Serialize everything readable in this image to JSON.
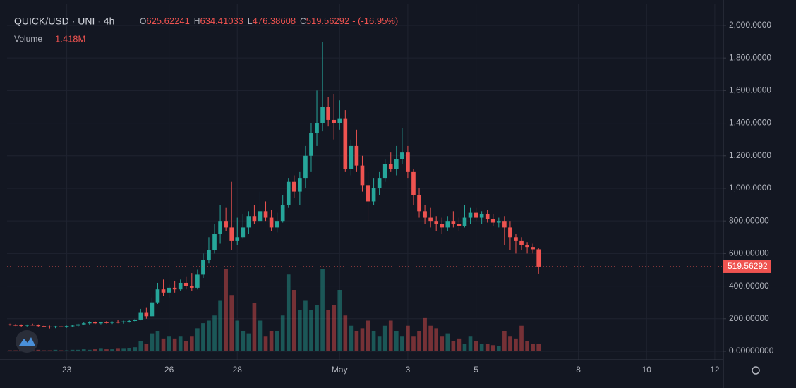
{
  "chart_data": {
    "type": "candlestick",
    "title": "QUICK/USD · UNI · 4h",
    "ohlc_labels": [
      "O",
      "H",
      "L",
      "C"
    ],
    "change_label": "- (-16.95%)",
    "volume_title": "Volume",
    "volume_label": "1.418M",
    "up_color": "#26a69a",
    "down_color": "#ef5350",
    "grid": true,
    "ylim": [
      -52,
      2134
    ],
    "yticks": [
      {
        "value": 0,
        "label": "0.00000000"
      },
      {
        "value": 200,
        "label": "200.00000"
      },
      {
        "value": 400,
        "label": "400.00000"
      },
      {
        "value": 600,
        "label": "600.00000"
      },
      {
        "value": 800,
        "label": "800.00000"
      },
      {
        "value": 1000,
        "label": "1,000.0000"
      },
      {
        "value": 1200,
        "label": "1,200.0000"
      },
      {
        "value": 1400,
        "label": "1,400.0000"
      },
      {
        "value": 1600,
        "label": "1,600.0000"
      },
      {
        "value": 1800,
        "label": "1,800.0000"
      },
      {
        "value": 2000,
        "label": "2,000.0000"
      }
    ],
    "xlim": [
      -10.5,
      115.5
    ],
    "xticks": [
      {
        "value": 0,
        "label": "23"
      },
      {
        "value": 18,
        "label": "26"
      },
      {
        "value": 30,
        "label": "28"
      },
      {
        "value": 48,
        "label": "May"
      },
      {
        "value": 60,
        "label": "3"
      },
      {
        "value": 72,
        "label": "5"
      },
      {
        "value": 90,
        "label": "8"
      },
      {
        "value": 102,
        "label": "10"
      },
      {
        "value": 114,
        "label": "12"
      }
    ],
    "volume_lim": [
      0,
      68000000
    ],
    "x": [
      -10,
      -9,
      -8,
      -7,
      -6,
      -5,
      -4,
      -3,
      -2,
      -1,
      0,
      1,
      2,
      3,
      4,
      5,
      6,
      7,
      8,
      9,
      10,
      11,
      12,
      13,
      14,
      15,
      16,
      17,
      18,
      19,
      20,
      21,
      22,
      23,
      24,
      25,
      26,
      27,
      28,
      29,
      30,
      31,
      32,
      33,
      34,
      35,
      36,
      37,
      38,
      39,
      40,
      41,
      42,
      43,
      44,
      45,
      46,
      47,
      48,
      49,
      50,
      51,
      52,
      53,
      54,
      55,
      56,
      57,
      58,
      59,
      60,
      61,
      62,
      63,
      64,
      65,
      66,
      67,
      68,
      69,
      70,
      71,
      72,
      73,
      74,
      75,
      76,
      77,
      78,
      79,
      80,
      81,
      82,
      83
    ],
    "ohlc": [
      [
        165,
        170,
        158,
        162
      ],
      [
        162,
        168,
        155,
        160
      ],
      [
        160,
        166,
        150,
        158
      ],
      [
        158,
        165,
        152,
        163
      ],
      [
        163,
        170,
        158,
        160
      ],
      [
        160,
        166,
        152,
        155
      ],
      [
        155,
        162,
        148,
        152
      ],
      [
        152,
        158,
        140,
        148
      ],
      [
        148,
        156,
        142,
        153
      ],
      [
        153,
        160,
        146,
        150
      ],
      [
        150,
        158,
        144,
        155
      ],
      [
        155,
        162,
        150,
        158
      ],
      [
        158,
        170,
        152,
        166
      ],
      [
        166,
        178,
        160,
        172
      ],
      [
        172,
        185,
        165,
        178
      ],
      [
        178,
        184,
        168,
        172
      ],
      [
        172,
        182,
        166,
        178
      ],
      [
        178,
        186,
        170,
        175
      ],
      [
        175,
        184,
        168,
        180
      ],
      [
        180,
        190,
        172,
        178
      ],
      [
        178,
        188,
        170,
        183
      ],
      [
        183,
        192,
        176,
        186
      ],
      [
        186,
        200,
        178,
        195
      ],
      [
        195,
        260,
        190,
        240
      ],
      [
        240,
        270,
        200,
        215
      ],
      [
        215,
        330,
        210,
        300
      ],
      [
        300,
        420,
        290,
        380
      ],
      [
        380,
        440,
        340,
        360
      ],
      [
        360,
        410,
        330,
        390
      ],
      [
        390,
        430,
        360,
        380
      ],
      [
        380,
        440,
        370,
        420
      ],
      [
        420,
        460,
        380,
        400
      ],
      [
        400,
        480,
        370,
        390
      ],
      [
        390,
        500,
        380,
        470
      ],
      [
        470,
        600,
        450,
        560
      ],
      [
        560,
        700,
        540,
        620
      ],
      [
        620,
        780,
        600,
        720
      ],
      [
        720,
        900,
        660,
        800
      ],
      [
        800,
        880,
        740,
        760
      ],
      [
        760,
        1040,
        620,
        680
      ],
      [
        680,
        820,
        650,
        700
      ],
      [
        700,
        840,
        690,
        760
      ],
      [
        760,
        860,
        720,
        830
      ],
      [
        830,
        900,
        780,
        800
      ],
      [
        800,
        980,
        790,
        860
      ],
      [
        860,
        920,
        800,
        820
      ],
      [
        820,
        870,
        740,
        760
      ],
      [
        760,
        850,
        730,
        800
      ],
      [
        800,
        960,
        790,
        900
      ],
      [
        900,
        1060,
        880,
        1040
      ],
      [
        1040,
        1080,
        940,
        980
      ],
      [
        980,
        1100,
        900,
        1060
      ],
      [
        1060,
        1260,
        1000,
        1200
      ],
      [
        1200,
        1400,
        1100,
        1340
      ],
      [
        1340,
        1600,
        1260,
        1400
      ],
      [
        1400,
        1900,
        1350,
        1500
      ],
      [
        1500,
        1560,
        1380,
        1420
      ],
      [
        1420,
        1580,
        1300,
        1400
      ],
      [
        1400,
        1540,
        1360,
        1430
      ],
      [
        1430,
        1480,
        1100,
        1120
      ],
      [
        1120,
        1300,
        1080,
        1260
      ],
      [
        1260,
        1360,
        1100,
        1140
      ],
      [
        1140,
        1200,
        980,
        1020
      ],
      [
        1020,
        1100,
        800,
        920
      ],
      [
        920,
        1060,
        900,
        1000
      ],
      [
        1000,
        1100,
        960,
        1060
      ],
      [
        1060,
        1180,
        1040,
        1150
      ],
      [
        1150,
        1220,
        1100,
        1120
      ],
      [
        1120,
        1260,
        1080,
        1180
      ],
      [
        1180,
        1370,
        1150,
        1220
      ],
      [
        1220,
        1260,
        1060,
        1100
      ],
      [
        1100,
        1120,
        900,
        960
      ],
      [
        960,
        1000,
        820,
        860
      ],
      [
        860,
        900,
        780,
        820
      ],
      [
        820,
        880,
        760,
        800
      ],
      [
        800,
        830,
        740,
        780
      ],
      [
        780,
        820,
        720,
        760
      ],
      [
        760,
        830,
        740,
        800
      ],
      [
        800,
        860,
        760,
        780
      ],
      [
        780,
        820,
        740,
        770
      ],
      [
        770,
        900,
        760,
        820
      ],
      [
        820,
        880,
        780,
        850
      ],
      [
        850,
        880,
        800,
        820
      ],
      [
        820,
        860,
        780,
        840
      ],
      [
        840,
        870,
        790,
        810
      ],
      [
        810,
        840,
        770,
        790
      ],
      [
        790,
        820,
        760,
        800
      ],
      [
        800,
        830,
        650,
        760
      ],
      [
        760,
        800,
        620,
        700
      ],
      [
        700,
        720,
        600,
        680
      ],
      [
        680,
        700,
        620,
        650
      ],
      [
        650,
        670,
        600,
        640
      ],
      [
        640,
        660,
        600,
        625.62241
      ],
      [
        625.62241,
        634.41033,
        476.38608,
        519.56292
      ]
    ],
    "volume": [
      200000,
      200000,
      300000,
      200000,
      200000,
      300000,
      200000,
      200000,
      300000,
      200000,
      200000,
      300000,
      300000,
      400000,
      300000,
      400000,
      500000,
      400000,
      400000,
      500000,
      500000,
      600000,
      800000,
      2000000,
      1500000,
      3500000,
      4000000,
      2500000,
      3000000,
      2500000,
      3000000,
      2000000,
      3000000,
      4500000,
      5500000,
      6000000,
      7000000,
      10000000,
      16000000,
      11000000,
      6000000,
      4000000,
      3500000,
      9500000,
      6000000,
      3000000,
      4000000,
      4000000,
      7000000,
      15000000,
      12000000,
      8000000,
      10000000,
      8000000,
      9000000,
      16000000,
      8000000,
      9000000,
      12000000,
      7000000,
      5000000,
      4000000,
      4500000,
      6000000,
      4000000,
      3000000,
      5000000,
      6000000,
      4000000,
      3000000,
      5000000,
      3000000,
      4000000,
      6500000,
      5000000,
      4500000,
      3000000,
      3500000,
      2000000,
      2500000,
      1500000,
      3000000,
      2000000,
      1500000,
      1500000,
      1200000,
      1000000,
      4000000,
      3000000,
      2500000,
      5000000,
      2000000,
      1500000,
      1418000
    ]
  }
}
